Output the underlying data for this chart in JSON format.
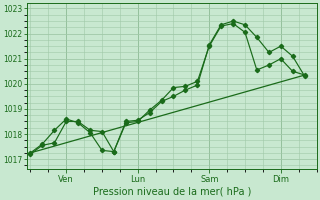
{
  "title": "",
  "xlabel": "Pression niveau de la mer( hPa )",
  "bg_color": "#c8e8d0",
  "grid_color": "#a0c8a8",
  "line_color": "#1a6b1a",
  "ylim": [
    1016.6,
    1023.2
  ],
  "xlim": [
    -0.1,
    8.0
  ],
  "xtick_labels": [
    "Ven",
    "Lun",
    "Sam",
    "Dim"
  ],
  "xtick_positions": [
    1,
    3,
    5,
    7
  ],
  "ytick_values": [
    1017,
    1018,
    1019,
    1020,
    1021,
    1022,
    1023
  ],
  "series1_x": [
    0,
    0.33,
    0.67,
    1.0,
    1.33,
    1.67,
    2.0,
    2.33,
    2.67,
    3.0,
    3.33,
    3.67,
    4.0,
    4.33,
    4.67,
    5.0,
    5.33,
    5.67,
    6.0,
    6.33,
    6.67,
    7.0,
    7.33,
    7.67
  ],
  "series1_y": [
    1017.2,
    1017.55,
    1017.65,
    1018.5,
    1018.5,
    1018.15,
    1018.1,
    1017.3,
    1018.45,
    1018.5,
    1018.95,
    1019.35,
    1019.85,
    1019.9,
    1020.1,
    1021.5,
    1022.3,
    1022.4,
    1022.05,
    1020.55,
    1020.75,
    1021.0,
    1020.5,
    1020.35
  ],
  "series2_x": [
    0,
    0.33,
    0.67,
    1.0,
    1.33,
    1.67,
    2.0,
    2.33,
    2.67,
    3.0,
    3.33,
    3.67,
    4.0,
    4.33,
    4.67,
    5.0,
    5.33,
    5.67,
    6.0,
    6.33,
    6.67,
    7.0,
    7.33,
    7.67
  ],
  "series2_y": [
    1017.25,
    1017.6,
    1018.15,
    1018.6,
    1018.45,
    1018.05,
    1017.35,
    1017.3,
    1018.5,
    1018.55,
    1018.85,
    1019.3,
    1019.5,
    1019.75,
    1019.95,
    1021.55,
    1022.35,
    1022.5,
    1022.35,
    1021.85,
    1021.25,
    1021.5,
    1021.1,
    1020.3
  ],
  "series3_x": [
    0,
    7.67
  ],
  "series3_y": [
    1017.25,
    1020.35
  ],
  "n_minor_x": 4,
  "n_minor_y": 4,
  "xlabel_fontsize": 7.0,
  "ytick_fontsize": 5.5,
  "xtick_fontsize": 6.0
}
